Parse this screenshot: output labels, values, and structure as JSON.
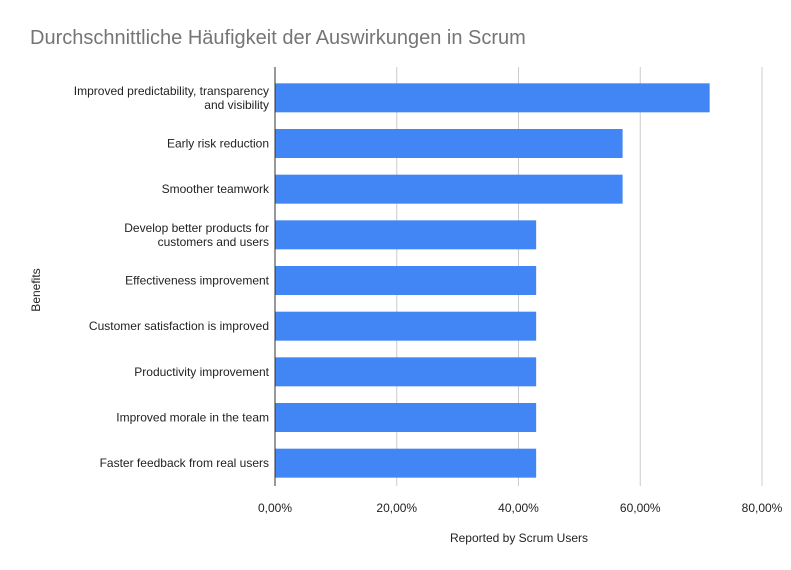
{
  "chart_data": {
    "type": "bar",
    "orientation": "horizontal",
    "title": "Durchschnittliche Häufigkeit der Auswirkungen in Scrum",
    "xlabel": "Reported by Scrum Users",
    "ylabel": "Benefits",
    "categories": [
      [
        "Improved predictability, transparency",
        "and visibility"
      ],
      [
        "Early risk reduction"
      ],
      [
        "Smoother teamwork"
      ],
      [
        "Develop better products for",
        "customers and users"
      ],
      [
        "Effectiveness improvement"
      ],
      [
        "Customer satisfaction is improved"
      ],
      [
        "Productivity improvement"
      ],
      [
        "Improved morale in the team"
      ],
      [
        "Faster feedback from real users"
      ]
    ],
    "values": [
      71.4,
      57.1,
      57.1,
      42.9,
      42.9,
      42.9,
      42.9,
      42.9,
      42.9
    ],
    "xlim": [
      0,
      80
    ],
    "xticks": [
      0,
      20,
      40,
      60,
      80
    ],
    "xtick_labels": [
      "0,00%",
      "20,00%",
      "40,00%",
      "60,00%",
      "80,00%"
    ],
    "grid": "vertical",
    "legend": "none",
    "colors": {
      "bar": "#4285f4",
      "grid": "#cccccc",
      "axis": "#333333",
      "title": "#757575"
    }
  }
}
